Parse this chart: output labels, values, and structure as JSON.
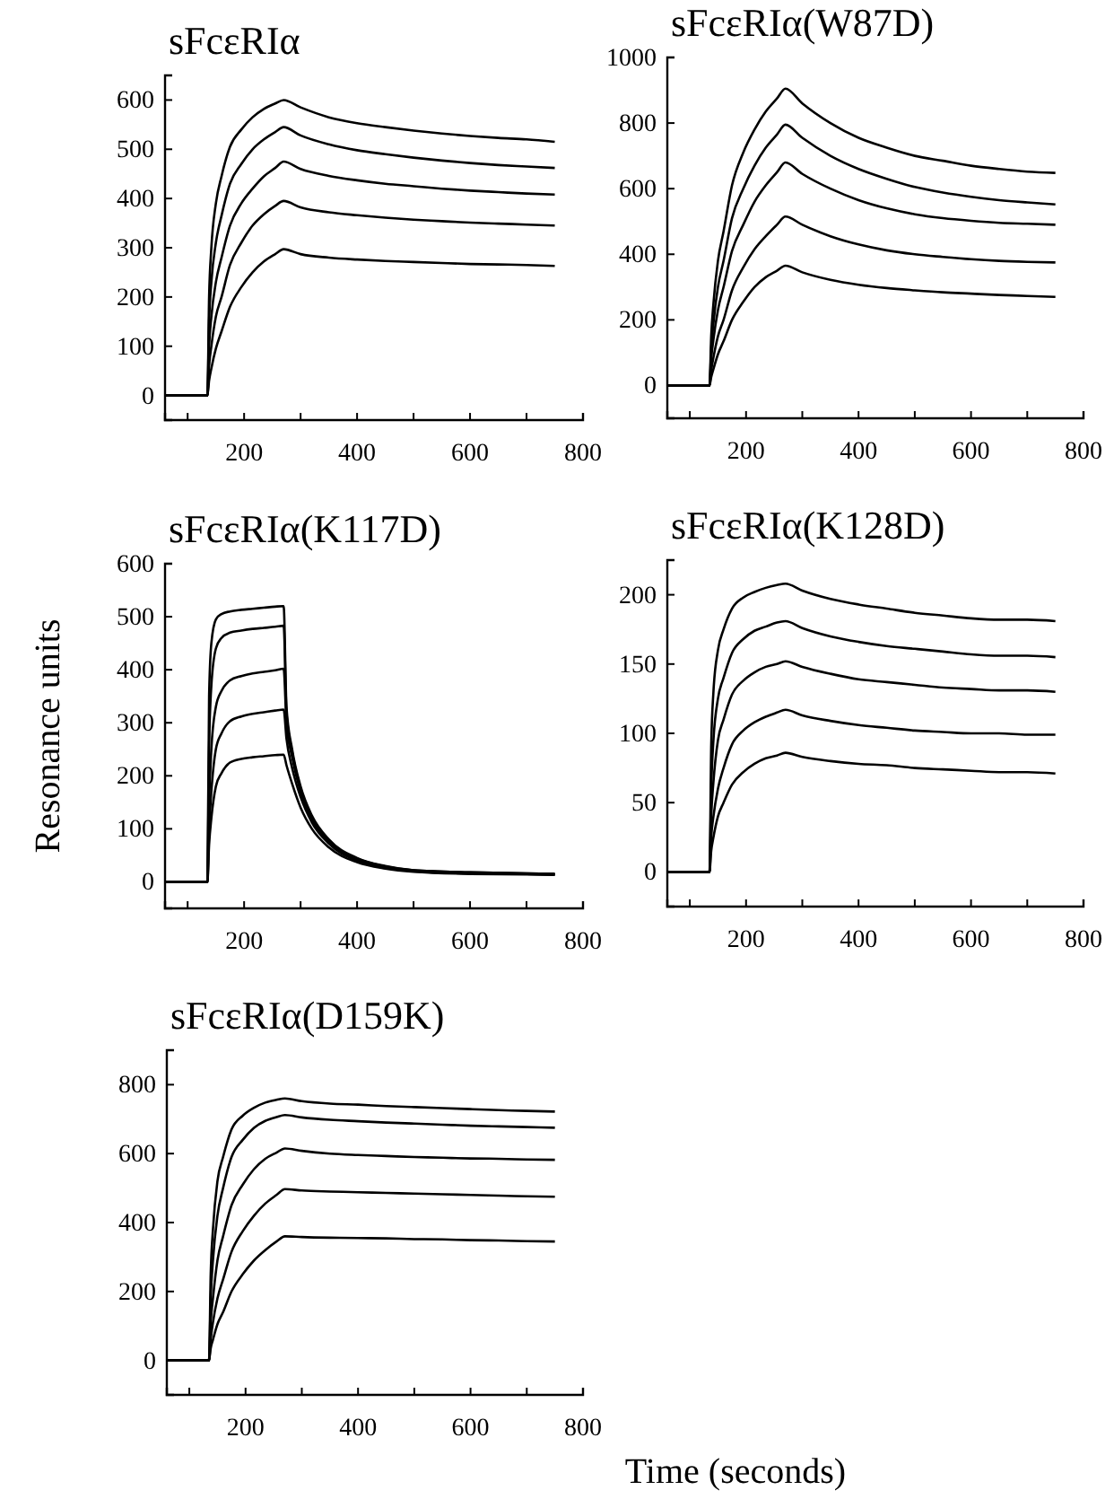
{
  "chart_data": [
    {
      "type": "line",
      "title": "sFcεRIα",
      "x": [
        60,
        135,
        138,
        142,
        150,
        160,
        175,
        195,
        215,
        235,
        255,
        270,
        300,
        350,
        400,
        450,
        500,
        550,
        600,
        650,
        700,
        750
      ],
      "xlim": [
        60,
        800
      ],
      "xticks": [
        {
          "value": 100,
          "label": null
        },
        200,
        {
          "value": 300,
          "label": null
        },
        400,
        {
          "value": 500,
          "label": null
        },
        600,
        {
          "value": 700,
          "label": null
        },
        800
      ],
      "ylim": [
        -50,
        650
      ],
      "yticks": [
        0,
        100,
        200,
        300,
        400,
        500,
        600
      ],
      "marker": "none",
      "series": [
        {
          "color": "#000000",
          "values": [
            0,
            0,
            200,
            300,
            390,
            445,
            505,
            540,
            565,
            582,
            593,
            600,
            585,
            565,
            553,
            545,
            538,
            532,
            527,
            523,
            520,
            515
          ]
        },
        {
          "color": "#000000",
          "values": [
            0,
            0,
            150,
            230,
            310,
            365,
            430,
            470,
            500,
            520,
            535,
            545,
            528,
            510,
            498,
            490,
            483,
            477,
            472,
            468,
            465,
            462
          ]
        },
        {
          "color": "#000000",
          "values": [
            0,
            0,
            100,
            160,
            230,
            280,
            345,
            390,
            420,
            445,
            462,
            475,
            460,
            446,
            437,
            430,
            425,
            420,
            416,
            413,
            410,
            408
          ]
        },
        {
          "color": "#000000",
          "values": [
            0,
            0,
            60,
            100,
            160,
            200,
            265,
            310,
            345,
            368,
            385,
            395,
            382,
            372,
            366,
            361,
            357,
            354,
            351,
            349,
            347,
            345
          ]
        },
        {
          "color": "#000000",
          "values": [
            0,
            0,
            30,
            55,
            95,
            130,
            180,
            220,
            250,
            272,
            287,
            297,
            287,
            280,
            276,
            273,
            271,
            269,
            267,
            266,
            265,
            263
          ]
        }
      ]
    },
    {
      "type": "line",
      "title": "sFcεRIα(W87D)",
      "x": [
        60,
        135,
        138,
        142,
        150,
        160,
        175,
        195,
        215,
        235,
        255,
        270,
        300,
        350,
        400,
        450,
        500,
        550,
        600,
        650,
        700,
        750
      ],
      "xlim": [
        60,
        800
      ],
      "xticks": [
        {
          "value": 100,
          "label": null
        },
        200,
        {
          "value": 300,
          "label": null
        },
        400,
        {
          "value": 500,
          "label": null
        },
        600,
        {
          "value": 700,
          "label": null
        },
        800
      ],
      "ylim": [
        -100,
        1000
      ],
      "yticks": [
        0,
        200,
        400,
        600,
        800,
        1000
      ],
      "marker": "none",
      "series": [
        {
          "color": "#000000",
          "values": [
            0,
            0,
            150,
            250,
            380,
            470,
            610,
            710,
            780,
            835,
            875,
            905,
            860,
            800,
            755,
            725,
            700,
            685,
            670,
            660,
            652,
            648
          ]
        },
        {
          "color": "#000000",
          "values": [
            0,
            0,
            110,
            190,
            300,
            380,
            510,
            600,
            670,
            725,
            765,
            795,
            755,
            700,
            660,
            630,
            605,
            588,
            575,
            565,
            558,
            552
          ]
        },
        {
          "color": "#000000",
          "values": [
            0,
            0,
            80,
            140,
            230,
            300,
            410,
            490,
            560,
            610,
            650,
            680,
            645,
            600,
            565,
            540,
            522,
            510,
            502,
            496,
            493,
            490
          ]
        },
        {
          "color": "#000000",
          "values": [
            0,
            0,
            45,
            85,
            150,
            200,
            290,
            360,
            415,
            455,
            490,
            515,
            490,
            455,
            430,
            412,
            400,
            392,
            385,
            380,
            377,
            375
          ]
        },
        {
          "color": "#000000",
          "values": [
            0,
            0,
            25,
            50,
            95,
            135,
            200,
            255,
            300,
            330,
            350,
            365,
            345,
            322,
            307,
            297,
            290,
            284,
            280,
            276,
            273,
            270
          ]
        }
      ]
    },
    {
      "type": "line",
      "title": "sFcεRIα(K117D)",
      "ylabel": "Resonance units",
      "x": [
        60,
        135,
        138,
        142,
        150,
        160,
        175,
        195,
        215,
        235,
        255,
        270,
        275,
        285,
        300,
        320,
        350,
        400,
        450,
        500,
        600,
        700,
        750
      ],
      "xlim": [
        60,
        800
      ],
      "xticks": [
        {
          "value": 100,
          "label": null
        },
        200,
        {
          "value": 300,
          "label": null
        },
        400,
        {
          "value": 500,
          "label": null
        },
        600,
        {
          "value": 700,
          "label": null
        },
        800
      ],
      "ylim": [
        -50,
        600
      ],
      "yticks": [
        0,
        100,
        200,
        300,
        400,
        500,
        600
      ],
      "marker": "none",
      "series": [
        {
          "color": "#000000",
          "values": [
            0,
            0,
            350,
            450,
            495,
            505,
            510,
            513,
            515,
            517,
            519,
            520,
            330,
            250,
            180,
            125,
            80,
            45,
            30,
            22,
            18,
            16,
            15
          ]
        },
        {
          "color": "#000000",
          "values": [
            0,
            0,
            250,
            370,
            440,
            460,
            470,
            474,
            477,
            479,
            481,
            483,
            320,
            245,
            175,
            122,
            78,
            44,
            29,
            22,
            18,
            16,
            15
          ]
        },
        {
          "color": "#000000",
          "values": [
            0,
            0,
            150,
            250,
            330,
            360,
            380,
            388,
            393,
            396,
            399,
            402,
            300,
            235,
            170,
            118,
            75,
            42,
            28,
            21,
            17,
            15,
            14
          ]
        },
        {
          "color": "#000000",
          "values": [
            0,
            0,
            100,
            170,
            250,
            280,
            303,
            312,
            317,
            320,
            323,
            325,
            270,
            215,
            160,
            112,
            72,
            40,
            27,
            20,
            16,
            15,
            14
          ]
        },
        {
          "color": "#000000",
          "values": [
            0,
            0,
            70,
            120,
            180,
            205,
            225,
            232,
            235,
            237,
            239,
            240,
            220,
            185,
            140,
            100,
            65,
            37,
            25,
            19,
            15,
            14,
            13
          ]
        }
      ]
    },
    {
      "type": "line",
      "title": "sFcεRIα(K128D)",
      "x": [
        60,
        135,
        138,
        142,
        150,
        160,
        175,
        195,
        215,
        235,
        255,
        270,
        300,
        350,
        400,
        450,
        500,
        550,
        600,
        650,
        700,
        750
      ],
      "xlim": [
        60,
        800
      ],
      "xticks": [
        {
          "value": 100,
          "label": null
        },
        200,
        {
          "value": 300,
          "label": null
        },
        400,
        {
          "value": 500,
          "label": null
        },
        600,
        {
          "value": 700,
          "label": null
        },
        800
      ],
      "ylim": [
        -25,
        225
      ],
      "yticks": [
        0,
        50,
        100,
        150,
        200
      ],
      "marker": "none",
      "series": [
        {
          "color": "#000000",
          "values": [
            0,
            0,
            90,
            130,
            160,
            175,
            190,
            198,
            202,
            205,
            207,
            208,
            203,
            197,
            193,
            190,
            187,
            185,
            183,
            182,
            182,
            181
          ]
        },
        {
          "color": "#000000",
          "values": [
            0,
            0,
            60,
            95,
            125,
            140,
            158,
            168,
            174,
            177,
            180,
            181,
            176,
            170,
            166,
            163,
            161,
            159,
            157,
            156,
            156,
            155
          ]
        },
        {
          "color": "#000000",
          "values": [
            0,
            0,
            40,
            65,
            95,
            110,
            128,
            138,
            144,
            148,
            150,
            152,
            148,
            143,
            139,
            137,
            135,
            133,
            132,
            131,
            131,
            130
          ]
        },
        {
          "color": "#000000",
          "values": [
            0,
            0,
            25,
            40,
            60,
            75,
            92,
            102,
            108,
            112,
            115,
            117,
            113,
            109,
            106,
            104,
            102,
            101,
            100,
            100,
            99,
            99
          ]
        },
        {
          "color": "#000000",
          "values": [
            0,
            0,
            15,
            25,
            40,
            50,
            63,
            72,
            78,
            82,
            84,
            86,
            83,
            80,
            78,
            77,
            75,
            74,
            73,
            72,
            72,
            71
          ]
        }
      ]
    },
    {
      "type": "line",
      "title": "sFcεRIα(D159K)",
      "xlabel": "Time (seconds)",
      "x": [
        60,
        135,
        138,
        142,
        150,
        160,
        175,
        195,
        215,
        235,
        255,
        270,
        300,
        350,
        400,
        450,
        500,
        550,
        600,
        650,
        700,
        750
      ],
      "xlim": [
        60,
        800
      ],
      "xticks": [
        {
          "value": 100,
          "label": null
        },
        200,
        {
          "value": 300,
          "label": null
        },
        400,
        {
          "value": 500,
          "label": null
        },
        600,
        {
          "value": 700,
          "label": null
        },
        800
      ],
      "ylim": [
        -100,
        900
      ],
      "yticks": [
        0,
        200,
        400,
        600,
        800
      ],
      "marker": "none",
      "series": [
        {
          "color": "#000000",
          "values": [
            0,
            0,
            250,
            380,
            520,
            590,
            670,
            710,
            733,
            748,
            756,
            760,
            752,
            745,
            742,
            738,
            735,
            732,
            729,
            726,
            724,
            722
          ]
        },
        {
          "color": "#000000",
          "values": [
            0,
            0,
            180,
            290,
            420,
            500,
            590,
            640,
            675,
            695,
            706,
            712,
            705,
            698,
            694,
            690,
            687,
            684,
            681,
            679,
            677,
            675
          ]
        },
        {
          "color": "#000000",
          "values": [
            0,
            0,
            110,
            180,
            290,
            360,
            450,
            510,
            555,
            585,
            603,
            615,
            608,
            600,
            596,
            593,
            590,
            588,
            586,
            585,
            583,
            582
          ]
        },
        {
          "color": "#000000",
          "values": [
            0,
            0,
            60,
            110,
            180,
            235,
            315,
            375,
            420,
            455,
            480,
            497,
            493,
            490,
            488,
            486,
            484,
            482,
            480,
            478,
            476,
            475
          ]
        },
        {
          "color": "#000000",
          "values": [
            0,
            0,
            35,
            60,
            105,
            140,
            200,
            250,
            290,
            320,
            345,
            360,
            358,
            356,
            355,
            354,
            352,
            351,
            349,
            348,
            346,
            345
          ]
        }
      ]
    }
  ]
}
